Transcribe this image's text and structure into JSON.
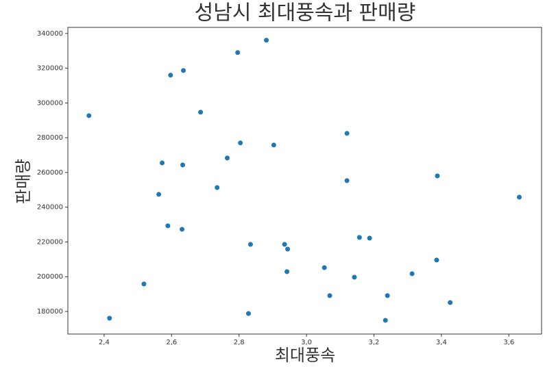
{
  "chart_data": {
    "type": "scatter",
    "title": "성남시 최대풍속과 판매량",
    "x_label": "최대풍속",
    "y_label": "판매량",
    "color": "#1f77b4",
    "x": [
      2.355,
      2.416,
      2.518,
      2.562,
      2.572,
      2.589,
      2.597,
      2.635,
      2.633,
      2.631,
      2.686,
      2.735,
      2.765,
      2.796,
      2.804,
      2.881,
      2.834,
      2.828,
      2.903,
      2.935,
      2.944,
      2.942,
      3.053,
      3.069,
      3.12,
      3.12,
      3.142,
      3.157,
      3.187,
      3.234,
      3.24,
      3.313,
      3.386,
      3.388,
      3.426,
      3.631
    ],
    "values": [
      292700,
      176100,
      195800,
      247400,
      265500,
      229300,
      316000,
      318700,
      264300,
      227300,
      294700,
      251300,
      268300,
      329000,
      277000,
      336100,
      218600,
      178800,
      275800,
      218600,
      215900,
      202900,
      205200,
      189100,
      282500,
      255300,
      199700,
      222600,
      222200,
      174900,
      189100,
      201700,
      209600,
      258000,
      185100,
      245800
    ],
    "xlim": [
      2.2925,
      3.697
    ],
    "ylim": [
      167000,
      343500
    ],
    "xticks": [
      {
        "value": 2.4,
        "label": "2,4"
      },
      {
        "value": 2.6,
        "label": "2,6"
      },
      {
        "value": 2.8,
        "label": "2,8"
      },
      {
        "value": 3.0,
        "label": "3,0"
      },
      {
        "value": 3.2,
        "label": "3,2"
      },
      {
        "value": 3.4,
        "label": "3,4"
      },
      {
        "value": 3.6,
        "label": "3,6"
      }
    ],
    "yticks": [
      180000,
      200000,
      220000,
      240000,
      260000,
      280000,
      300000,
      320000,
      340000
    ]
  }
}
